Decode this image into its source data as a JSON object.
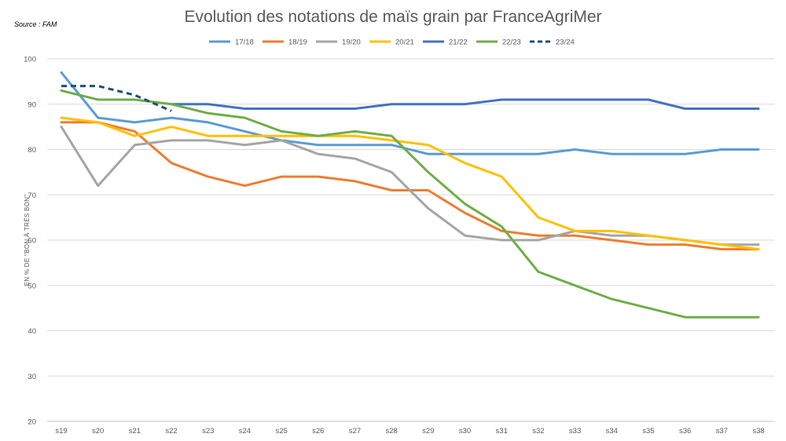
{
  "chart_data": {
    "type": "line",
    "title": "Evolution des notations de maïs grain par FranceAgriMer",
    "source": "Source : FAM",
    "ylabel": "EN % DE \"BON À TRÈS BON\"",
    "xlabel": "",
    "ylim": [
      20,
      100
    ],
    "yticks": [
      20,
      30,
      40,
      50,
      60,
      70,
      80,
      90,
      100
    ],
    "grid": true,
    "legend_position": "top",
    "categories": [
      "s19",
      "s20",
      "s21",
      "s22",
      "s23",
      "s24",
      "s25",
      "s26",
      "s27",
      "s28",
      "s29",
      "s30",
      "s31",
      "s32",
      "s33",
      "s34",
      "s35",
      "s36",
      "s37",
      "s38"
    ],
    "series": [
      {
        "name": "17/18",
        "color": "#5B9BD5",
        "dashed": false,
        "values": [
          97,
          87,
          86,
          87,
          86,
          84,
          82,
          81,
          81,
          81,
          79,
          79,
          79,
          79,
          80,
          79,
          79,
          79,
          80,
          80
        ]
      },
      {
        "name": "18/19",
        "color": "#ED7D31",
        "dashed": false,
        "values": [
          86,
          86,
          84,
          77,
          74,
          72,
          74,
          74,
          73,
          71,
          71,
          66,
          62,
          61,
          61,
          60,
          59,
          59,
          58,
          58
        ]
      },
      {
        "name": "19/20",
        "color": "#A5A5A5",
        "dashed": false,
        "values": [
          85,
          72,
          81,
          82,
          82,
          81,
          82,
          79,
          78,
          75,
          67,
          61,
          60,
          60,
          62,
          61,
          61,
          60,
          59,
          59
        ]
      },
      {
        "name": "20/21",
        "color": "#FFC000",
        "dashed": false,
        "values": [
          87,
          86,
          83,
          85,
          83,
          83,
          83,
          83,
          83,
          82,
          81,
          77,
          74,
          65,
          62,
          62,
          61,
          60,
          59,
          58
        ]
      },
      {
        "name": "21/22",
        "color": "#4472C4",
        "dashed": false,
        "values": [
          null,
          null,
          null,
          90,
          90,
          89,
          89,
          89,
          89,
          90,
          90,
          90,
          91,
          91,
          91,
          91,
          91,
          89,
          89,
          89
        ]
      },
      {
        "name": "22/23",
        "color": "#70AD47",
        "dashed": false,
        "values": [
          93,
          91,
          91,
          90,
          88,
          87,
          84,
          83,
          84,
          83,
          75,
          68,
          63,
          53,
          50,
          47,
          45,
          43,
          43,
          43
        ]
      },
      {
        "name": "23/24",
        "color": "#1F4E79",
        "dashed": true,
        "values": [
          94,
          94,
          92,
          88.5,
          null,
          null,
          null,
          null,
          null,
          null,
          null,
          null,
          null,
          null,
          null,
          null,
          null,
          null,
          null,
          null
        ]
      }
    ]
  }
}
